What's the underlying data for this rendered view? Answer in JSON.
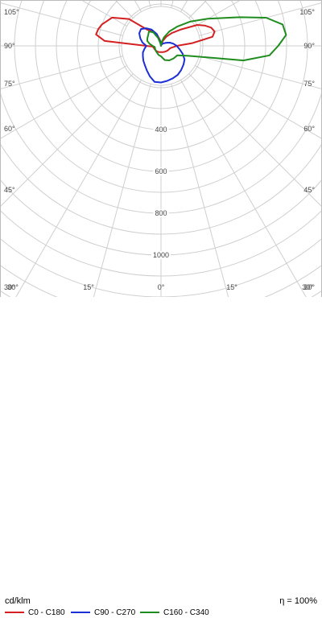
{
  "chart_data": {
    "type": "polar",
    "unit_label": "cd/klm",
    "efficiency_label": "η = 100%",
    "radial_ticks": [
      400,
      600,
      800,
      1000
    ],
    "angle_labels": {
      "left": [
        "105°",
        "90°",
        "75°",
        "60°",
        "45°",
        "30°"
      ],
      "right": [
        "105°",
        "90°",
        "75°",
        "60°",
        "45°",
        "30°"
      ],
      "bottom": [
        "30°",
        "15°",
        "0°",
        "15°",
        "30°"
      ]
    },
    "grid": true,
    "legend_position": "bottom",
    "series": [
      {
        "name": "C0 - C180",
        "color": "#d42020",
        "data": [
          [
            -180,
            0
          ],
          [
            -170,
            30
          ],
          [
            -160,
            60
          ],
          [
            -150,
            80
          ],
          [
            -140,
            100
          ],
          [
            -130,
            200
          ],
          [
            -120,
            270
          ],
          [
            -110,
            300
          ],
          [
            -105,
            310
          ],
          [
            -100,
            315
          ],
          [
            -95,
            270
          ],
          [
            -90,
            70
          ],
          [
            -85,
            40
          ],
          [
            -75,
            36
          ],
          [
            -60,
            34
          ],
          [
            -45,
            33
          ],
          [
            -30,
            32
          ],
          [
            -15,
            31
          ],
          [
            0,
            30
          ],
          [
            15,
            31
          ],
          [
            30,
            33
          ],
          [
            45,
            36
          ],
          [
            60,
            40
          ],
          [
            75,
            45
          ],
          [
            80,
            50
          ],
          [
            85,
            60
          ],
          [
            90,
            75
          ],
          [
            95,
            150
          ],
          [
            100,
            250
          ],
          [
            105,
            265
          ],
          [
            110,
            255
          ],
          [
            115,
            230
          ],
          [
            120,
            200
          ],
          [
            130,
            120
          ],
          [
            140,
            80
          ],
          [
            150,
            50
          ],
          [
            160,
            25
          ],
          [
            170,
            10
          ],
          [
            180,
            0
          ]
        ]
      },
      {
        "name": "C90 - C270",
        "color": "#1a2fd4",
        "data": [
          [
            -180,
            0
          ],
          [
            -170,
            20
          ],
          [
            -160,
            60
          ],
          [
            -150,
            90
          ],
          [
            -140,
            110
          ],
          [
            -130,
            125
          ],
          [
            -120,
            120
          ],
          [
            -110,
            105
          ],
          [
            -100,
            90
          ],
          [
            -90,
            70
          ],
          [
            -80,
            80
          ],
          [
            -70,
            92
          ],
          [
            -60,
            100
          ],
          [
            -50,
            110
          ],
          [
            -40,
            120
          ],
          [
            -30,
            135
          ],
          [
            -20,
            155
          ],
          [
            -10,
            175
          ],
          [
            0,
            175
          ],
          [
            10,
            170
          ],
          [
            20,
            165
          ],
          [
            30,
            160
          ],
          [
            40,
            150
          ],
          [
            50,
            140
          ],
          [
            60,
            130
          ],
          [
            70,
            110
          ],
          [
            80,
            90
          ],
          [
            90,
            75
          ],
          [
            100,
            60
          ],
          [
            110,
            45
          ],
          [
            120,
            30
          ],
          [
            140,
            15
          ],
          [
            160,
            5
          ],
          [
            180,
            0
          ]
        ]
      },
      {
        "name": "C160 - C340",
        "color": "#1f8c1f",
        "data": [
          [
            -180,
            0
          ],
          [
            -170,
            10
          ],
          [
            -160,
            40
          ],
          [
            -150,
            75
          ],
          [
            -140,
            90
          ],
          [
            -130,
            80
          ],
          [
            -120,
            75
          ],
          [
            -110,
            70
          ],
          [
            -100,
            55
          ],
          [
            -90,
            40
          ],
          [
            -80,
            30
          ],
          [
            -60,
            32
          ],
          [
            -45,
            35
          ],
          [
            -30,
            38
          ],
          [
            -15,
            45
          ],
          [
            0,
            50
          ],
          [
            15,
            70
          ],
          [
            30,
            80
          ],
          [
            45,
            85
          ],
          [
            60,
            90
          ],
          [
            70,
            140
          ],
          [
            80,
            400
          ],
          [
            85,
            520
          ],
          [
            90,
            560
          ],
          [
            95,
            600
          ],
          [
            100,
            590
          ],
          [
            105,
            520
          ],
          [
            110,
            400
          ],
          [
            120,
            260
          ],
          [
            130,
            180
          ],
          [
            140,
            120
          ],
          [
            150,
            80
          ],
          [
            160,
            45
          ],
          [
            170,
            20
          ],
          [
            180,
            0
          ]
        ]
      }
    ]
  }
}
